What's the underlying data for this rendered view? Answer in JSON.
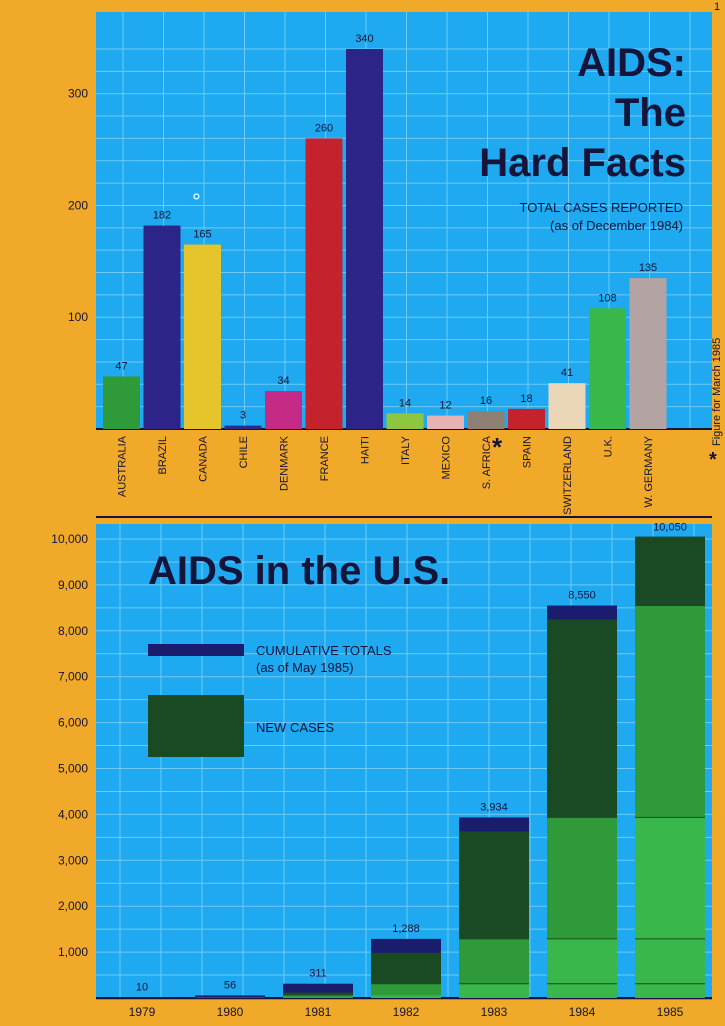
{
  "page": {
    "corner_mark": "1"
  },
  "chart_data": [
    {
      "type": "bar",
      "title_lines": [
        "AIDS:",
        "The",
        "Hard Facts"
      ],
      "subtitle_lines": [
        "TOTAL CASES REPORTED",
        "(as of December 1984)"
      ],
      "categories": [
        "AUSTRALIA",
        "BRAZIL",
        "CANADA",
        "CHILE",
        "DENMARK",
        "FRANCE",
        "HAITI",
        "ITALY",
        "MEXICO",
        "S. AFRICA",
        "SPAIN",
        "SWITZERLAND",
        "U.K.",
        "W. GERMANY"
      ],
      "values": [
        47,
        182,
        165,
        3,
        34,
        260,
        340,
        14,
        12,
        16,
        18,
        41,
        108,
        135
      ],
      "bar_colors": [
        "#2e9a3a",
        "#2c2587",
        "#e6c52c",
        "#2c2a8a",
        "#c42a86",
        "#c4222c",
        "#2c2587",
        "#8ec63f",
        "#e5b3b3",
        "#8f7f73",
        "#c4222c",
        "#ecd6b8",
        "#3ab74a",
        "#b3a3a3"
      ],
      "ylim": [
        0,
        350
      ],
      "yticks": [
        100,
        200,
        300
      ],
      "grid": true,
      "canada_circle": "°",
      "asterisk": "*",
      "footnote": "Figure for March 1985"
    },
    {
      "type": "bar",
      "title": "AIDS in the U.S.",
      "legend": [
        {
          "label_lines": [
            "CUMULATIVE TOTALS",
            "(as of May 1985)"
          ],
          "color": "#1a1d6e"
        },
        {
          "label_lines": [
            "NEW CASES"
          ],
          "color": "#1a4a23"
        }
      ],
      "categories": [
        "1979",
        "1980",
        "1981",
        "1982",
        "1983",
        "1984",
        "1985"
      ],
      "cumulative_totals": [
        10,
        56,
        311,
        1288,
        3934,
        8550,
        10050
      ],
      "value_labels": [
        "10",
        "56",
        "311",
        "1,288",
        "3,934",
        "8,550",
        "10,050"
      ],
      "ylim": [
        0,
        10500
      ],
      "yticks": [
        1000,
        2000,
        3000,
        4000,
        5000,
        6000,
        7000,
        8000,
        9000,
        10000
      ],
      "ytick_labels": [
        "1,000",
        "2,000",
        "3,000",
        "4,000",
        "5,000",
        "6,000",
        "7,000",
        "8,000",
        "9,000",
        "10,000"
      ],
      "grid": true
    }
  ],
  "colors": {
    "orange": "#f0a928",
    "sky": "#1ea9f0",
    "navy": "#1a1d6e",
    "dark_green": "#1a4a23",
    "mid_green": "#2f9a3a",
    "light_green": "#3ab74a"
  }
}
